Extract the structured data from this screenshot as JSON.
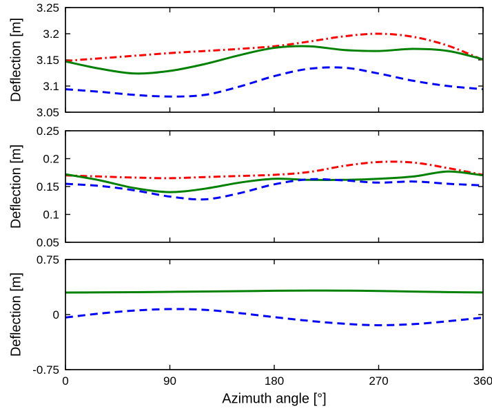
{
  "figure": {
    "xlabel": "Azimuth angle [°]"
  },
  "chart_data": [
    {
      "type": "line",
      "title": "",
      "ylabel": "Deflection [m]",
      "xlabel": "",
      "xlim": [
        0,
        360
      ],
      "xticks": [
        0,
        90,
        180,
        270,
        360
      ],
      "xtick_labels": [
        "0",
        "90",
        "180",
        "270",
        "360"
      ],
      "ylim": [
        3.05,
        3.25
      ],
      "yticks": [
        3.05,
        3.1,
        3.15,
        3.2,
        3.25
      ],
      "ytick_labels": [
        "3.05",
        "3.1",
        "3.15",
        "3.2",
        "3.25"
      ],
      "grid": false,
      "legend": "none",
      "x": [
        0,
        30,
        60,
        90,
        120,
        150,
        180,
        210,
        240,
        270,
        300,
        330,
        360
      ],
      "series": [
        {
          "name": "red-dashdot",
          "color": "#ff0000",
          "style": "dashdot",
          "values": [
            3.148,
            3.153,
            3.158,
            3.163,
            3.167,
            3.171,
            3.176,
            3.185,
            3.195,
            3.2,
            3.194,
            3.177,
            3.15
          ]
        },
        {
          "name": "green-solid",
          "color": "#008000",
          "style": "solid",
          "values": [
            3.147,
            3.133,
            3.124,
            3.129,
            3.142,
            3.159,
            3.173,
            3.176,
            3.169,
            3.167,
            3.171,
            3.167,
            3.151
          ]
        },
        {
          "name": "blue-dashed",
          "color": "#0000ff",
          "style": "dashed",
          "values": [
            3.094,
            3.089,
            3.083,
            3.08,
            3.083,
            3.099,
            3.119,
            3.133,
            3.135,
            3.124,
            3.11,
            3.1,
            3.094
          ]
        }
      ]
    },
    {
      "type": "line",
      "title": "",
      "ylabel": "Deflection [m]",
      "xlabel": "",
      "xlim": [
        0,
        360
      ],
      "xticks": [
        0,
        90,
        180,
        270,
        360
      ],
      "xtick_labels": [
        "0",
        "90",
        "180",
        "270",
        "360"
      ],
      "ylim": [
        0.05,
        0.25
      ],
      "yticks": [
        0.05,
        0.1,
        0.15,
        0.2,
        0.25
      ],
      "ytick_labels": [
        "0.05",
        "0.1",
        "0.15",
        "0.2",
        "0.25"
      ],
      "grid": false,
      "legend": "none",
      "x": [
        0,
        30,
        60,
        90,
        120,
        150,
        180,
        210,
        240,
        270,
        300,
        330,
        360
      ],
      "series": [
        {
          "name": "red-dashdot",
          "color": "#ff0000",
          "style": "dashdot",
          "values": [
            0.17,
            0.168,
            0.166,
            0.165,
            0.167,
            0.169,
            0.171,
            0.176,
            0.187,
            0.194,
            0.193,
            0.183,
            0.171
          ]
        },
        {
          "name": "green-solid",
          "color": "#008000",
          "style": "solid",
          "values": [
            0.172,
            0.161,
            0.147,
            0.14,
            0.146,
            0.157,
            0.164,
            0.162,
            0.162,
            0.164,
            0.168,
            0.177,
            0.17
          ]
        },
        {
          "name": "blue-dashed",
          "color": "#0000ff",
          "style": "dashed",
          "values": [
            0.155,
            0.151,
            0.143,
            0.132,
            0.127,
            0.138,
            0.154,
            0.163,
            0.161,
            0.157,
            0.159,
            0.155,
            0.152
          ]
        }
      ]
    },
    {
      "type": "line",
      "title": "",
      "ylabel": "Deflection [m]",
      "xlabel": "Azimuth angle [°]",
      "xlim": [
        0,
        360
      ],
      "xticks": [
        0,
        90,
        180,
        270,
        360
      ],
      "xtick_labels": [
        "0",
        "90",
        "180",
        "270",
        "360"
      ],
      "ylim": [
        -0.75,
        0.75
      ],
      "yticks": [
        -0.75,
        0,
        0.75
      ],
      "ytick_labels": [
        "-0.75",
        "0",
        "0.75"
      ],
      "grid": false,
      "legend": "none",
      "x": [
        0,
        30,
        60,
        90,
        120,
        150,
        180,
        210,
        240,
        270,
        300,
        330,
        360
      ],
      "series": [
        {
          "name": "green-solid",
          "color": "#008000",
          "style": "solid",
          "values": [
            0.3,
            0.302,
            0.305,
            0.309,
            0.314,
            0.319,
            0.324,
            0.327,
            0.326,
            0.321,
            0.313,
            0.306,
            0.301
          ]
        },
        {
          "name": "blue-dashed",
          "color": "#0000ff",
          "style": "dashed",
          "values": [
            -0.04,
            0.015,
            0.055,
            0.075,
            0.065,
            0.02,
            -0.035,
            -0.085,
            -0.125,
            -0.145,
            -0.13,
            -0.09,
            -0.042
          ]
        }
      ]
    }
  ]
}
